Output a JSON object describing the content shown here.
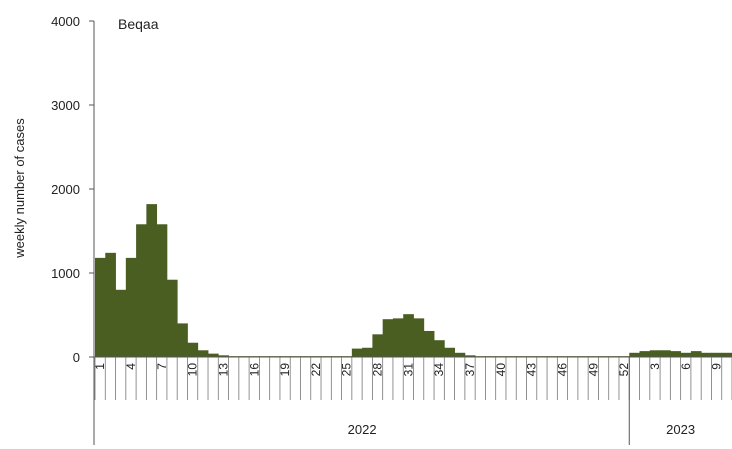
{
  "chart_data": {
    "type": "bar",
    "title": "Beqaa",
    "ylabel": "weekly number of cases",
    "xlabel": "",
    "ylim": [
      0,
      4000
    ],
    "yticks": [
      0,
      1000,
      2000,
      3000,
      4000
    ],
    "categories": [
      "1",
      "2",
      "3",
      "4",
      "5",
      "6",
      "7",
      "8",
      "9",
      "10",
      "11",
      "12",
      "13",
      "14",
      "15",
      "16",
      "17",
      "18",
      "19",
      "20",
      "21",
      "22",
      "23",
      "24",
      "25",
      "26",
      "27",
      "28",
      "29",
      "30",
      "31",
      "32",
      "33",
      "34",
      "35",
      "36",
      "37",
      "38",
      "39",
      "40",
      "41",
      "42",
      "43",
      "44",
      "45",
      "46",
      "47",
      "48",
      "49",
      "50",
      "51",
      "52",
      "1",
      "2",
      "3",
      "4",
      "5",
      "6",
      "7",
      "8",
      "9",
      "10"
    ],
    "x_tick_labels": [
      {
        "index": 0,
        "label": "1"
      },
      {
        "index": 3,
        "label": "4"
      },
      {
        "index": 6,
        "label": "7"
      },
      {
        "index": 9,
        "label": "10"
      },
      {
        "index": 12,
        "label": "13"
      },
      {
        "index": 15,
        "label": "16"
      },
      {
        "index": 18,
        "label": "19"
      },
      {
        "index": 21,
        "label": "22"
      },
      {
        "index": 24,
        "label": "25"
      },
      {
        "index": 27,
        "label": "28"
      },
      {
        "index": 30,
        "label": "31"
      },
      {
        "index": 33,
        "label": "34"
      },
      {
        "index": 36,
        "label": "37"
      },
      {
        "index": 39,
        "label": "40"
      },
      {
        "index": 42,
        "label": "43"
      },
      {
        "index": 45,
        "label": "46"
      },
      {
        "index": 48,
        "label": "49"
      },
      {
        "index": 51,
        "label": "52"
      },
      {
        "index": 54,
        "label": "3"
      },
      {
        "index": 57,
        "label": "6"
      },
      {
        "index": 60,
        "label": "9"
      }
    ],
    "groups": [
      {
        "label": "2022",
        "start": 0,
        "end": 51
      },
      {
        "label": "2023",
        "start": 52,
        "end": 61
      }
    ],
    "values": [
      1180,
      1240,
      800,
      1180,
      1580,
      1820,
      1580,
      920,
      400,
      170,
      80,
      40,
      20,
      10,
      10,
      10,
      10,
      10,
      10,
      10,
      10,
      10,
      10,
      10,
      10,
      100,
      110,
      270,
      450,
      460,
      510,
      460,
      310,
      200,
      110,
      50,
      20,
      10,
      10,
      10,
      10,
      10,
      10,
      10,
      10,
      10,
      10,
      10,
      10,
      10,
      10,
      10,
      50,
      70,
      80,
      80,
      70,
      50,
      70,
      50,
      50,
      50
    ],
    "bar_color": "#4a5e22",
    "grid": false,
    "legend": "none"
  }
}
